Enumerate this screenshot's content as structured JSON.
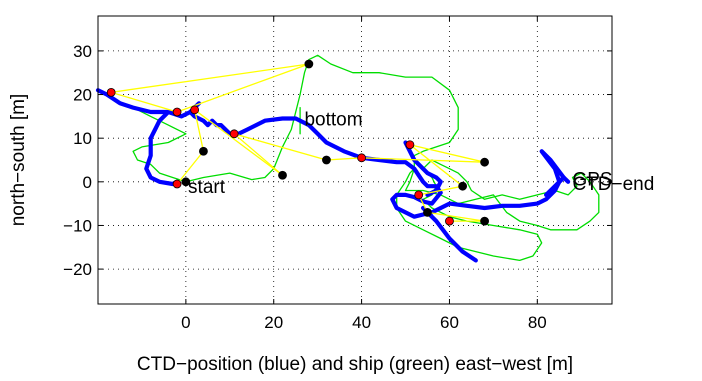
{
  "chart_data": {
    "type": "line",
    "xlabel": "CTD−position (blue) and ship (green) east−west [m]",
    "ylabel": "north−south [m]",
    "xlim": [
      -20,
      97
    ],
    "ylim": [
      -28,
      38
    ],
    "xticks": [
      0,
      20,
      40,
      60,
      80
    ],
    "yticks": [
      -20,
      -10,
      0,
      10,
      20,
      30
    ],
    "xtick_labels": [
      "0",
      "20",
      "40",
      "60",
      "80"
    ],
    "ytick_labels": [
      "−20",
      "−10",
      "0",
      "10",
      "20",
      "30"
    ],
    "grid": true,
    "colors": {
      "ctd": "#0000ff",
      "ship": "#00dd00",
      "link": "#ffff00",
      "red_marker": "#ff0000",
      "black_marker": "#000000"
    },
    "series": [
      {
        "key": "ctd",
        "points": [
          [
            -20,
            21
          ],
          [
            -18,
            20
          ],
          [
            -15,
            18
          ],
          [
            -12,
            17
          ],
          [
            -8,
            16
          ],
          [
            -4,
            16
          ],
          [
            -1,
            15
          ],
          [
            1,
            16
          ],
          [
            2,
            15
          ],
          [
            4,
            14
          ],
          [
            5,
            13
          ],
          [
            6,
            14
          ],
          [
            7,
            13
          ],
          [
            8,
            13
          ],
          [
            10,
            11
          ],
          [
            12,
            11
          ],
          [
            14,
            12
          ],
          [
            18,
            14
          ],
          [
            22,
            14.5
          ],
          [
            25,
            14.5
          ],
          [
            28,
            13
          ],
          [
            30,
            11
          ],
          [
            32,
            9
          ],
          [
            34,
            8
          ],
          [
            36,
            7
          ],
          [
            40,
            5.5
          ],
          [
            44,
            5
          ],
          [
            48,
            4.5
          ],
          [
            50,
            4.5
          ],
          [
            52,
            3
          ],
          [
            53,
            1.5
          ],
          [
            54,
            0
          ],
          [
            55,
            -1
          ],
          [
            57,
            -1
          ],
          [
            58,
            -2.5
          ],
          [
            56,
            -5
          ],
          [
            54,
            -4.5
          ],
          [
            52,
            -3.5
          ],
          [
            50,
            -3
          ],
          [
            48,
            -3
          ],
          [
            47,
            -4
          ],
          [
            48,
            -6
          ],
          [
            50,
            -7
          ],
          [
            52,
            -8
          ],
          [
            54,
            -7.5
          ],
          [
            56,
            -7
          ],
          [
            58,
            -6
          ],
          [
            60,
            -5
          ],
          [
            64,
            -5.5
          ],
          [
            68,
            -6
          ],
          [
            72,
            -5.5
          ],
          [
            76,
            -5.5
          ],
          [
            80,
            -5
          ],
          [
            82,
            -4
          ],
          [
            84,
            -2
          ],
          [
            85,
            0
          ],
          [
            86,
            1
          ],
          [
            87,
            0
          ]
        ]
      },
      {
        "key": "ctd",
        "points": [
          [
            -4,
            16
          ],
          [
            -6,
            14
          ],
          [
            -7,
            12
          ],
          [
            -8,
            10
          ],
          [
            -8,
            6
          ],
          [
            -9,
            3
          ],
          [
            -8,
            1
          ],
          [
            -6,
            0
          ],
          [
            -3,
            -0.5
          ],
          [
            -2,
            0
          ]
        ]
      },
      {
        "key": "ctd",
        "points": [
          [
            1,
            16
          ],
          [
            2,
            17
          ],
          [
            3,
            18
          ]
        ]
      },
      {
        "key": "ctd",
        "points": [
          [
            50,
            9
          ],
          [
            51,
            7
          ],
          [
            52,
            5
          ],
          [
            53,
            4
          ],
          [
            55,
            2
          ],
          [
            57,
            1
          ],
          [
            58,
            0
          ],
          [
            57,
            -2
          ],
          [
            55,
            -3
          ]
        ]
      },
      {
        "key": "ctd",
        "points": [
          [
            54,
            -6
          ],
          [
            57,
            -9
          ],
          [
            60,
            -13
          ],
          [
            63,
            -16
          ],
          [
            66,
            -18
          ]
        ]
      },
      {
        "key": "ctd",
        "points": [
          [
            85,
            0
          ],
          [
            84,
            3
          ],
          [
            81,
            7
          ],
          [
            83,
            5
          ],
          [
            86,
            1
          ],
          [
            84,
            -1
          ],
          [
            82,
            -3
          ]
        ]
      },
      {
        "key": "ship",
        "points": [
          [
            -12,
            17
          ],
          [
            -8,
            15
          ],
          [
            -4,
            13
          ],
          [
            0,
            11
          ],
          [
            -4,
            9
          ],
          [
            -10,
            8
          ],
          [
            -12,
            7
          ],
          [
            -11,
            5
          ],
          [
            -8,
            4
          ],
          [
            -6,
            2
          ],
          [
            -3,
            1
          ],
          [
            0,
            0
          ],
          [
            4,
            1
          ],
          [
            10,
            2
          ],
          [
            15,
            0.5
          ],
          [
            18,
            1
          ],
          [
            20,
            3
          ],
          [
            22,
            8
          ],
          [
            24,
            12
          ],
          [
            25,
            16
          ],
          [
            26,
            20
          ],
          [
            27,
            25
          ],
          [
            28,
            28
          ],
          [
            30,
            29
          ],
          [
            33,
            27
          ],
          [
            38,
            25
          ],
          [
            44,
            25
          ],
          [
            50,
            24
          ],
          [
            56,
            24
          ],
          [
            60,
            21
          ],
          [
            62,
            17
          ],
          [
            62,
            12
          ],
          [
            60,
            9
          ],
          [
            57,
            8
          ],
          [
            54,
            7
          ],
          [
            52,
            6
          ],
          [
            52,
            3
          ],
          [
            51,
            0
          ],
          [
            50,
            -2
          ],
          [
            54,
            -2
          ],
          [
            58,
            -3
          ],
          [
            62,
            -5
          ],
          [
            66,
            -4
          ],
          [
            70,
            -3
          ],
          [
            73,
            -7
          ],
          [
            76,
            -9
          ],
          [
            80,
            -10
          ],
          [
            83,
            -11
          ],
          [
            86,
            -11
          ],
          [
            89,
            -11
          ],
          [
            92,
            -9
          ],
          [
            94,
            -7
          ],
          [
            94,
            -3
          ],
          [
            92,
            0
          ],
          [
            90,
            2
          ],
          [
            88,
            1
          ],
          [
            89,
            -1
          ],
          [
            87,
            -3
          ],
          [
            84,
            -2
          ],
          [
            80,
            -3
          ],
          [
            76,
            -4
          ],
          [
            72,
            -3
          ],
          [
            68,
            -4
          ],
          [
            65,
            -2
          ],
          [
            64,
            0
          ],
          [
            62,
            2
          ],
          [
            60,
            3
          ],
          [
            58,
            4
          ],
          [
            56,
            5
          ],
          [
            54,
            3
          ],
          [
            56,
            1
          ],
          [
            57,
            -1
          ],
          [
            56,
            -3
          ],
          [
            54,
            -4
          ],
          [
            56,
            -6
          ],
          [
            60,
            -8
          ],
          [
            64,
            -9
          ],
          [
            70,
            -10
          ],
          [
            76,
            -11
          ],
          [
            80,
            -12
          ],
          [
            81,
            -14
          ],
          [
            79,
            -17
          ],
          [
            76,
            -18
          ],
          [
            70,
            -17
          ],
          [
            66,
            -16
          ],
          [
            62,
            -15
          ],
          [
            58,
            -13
          ],
          [
            54,
            -11
          ],
          [
            50,
            -9
          ],
          [
            48,
            -6
          ],
          [
            48,
            -3
          ],
          [
            50,
            0
          ],
          [
            51,
            2
          ],
          [
            52,
            3
          ]
        ]
      },
      {
        "key": "ship",
        "points": [
          [
            26,
            14
          ],
          [
            26,
            17
          ],
          [
            26,
            11
          ]
        ]
      }
    ],
    "links": [
      [
        [
          -17,
          20.5
        ],
        [
          28,
          27
        ]
      ],
      [
        [
          -17,
          20.5
        ],
        [
          -2,
          16
        ]
      ],
      [
        [
          -2,
          16
        ],
        [
          28,
          27
        ]
      ],
      [
        [
          2,
          16.5
        ],
        [
          22,
          1.5
        ]
      ],
      [
        [
          2,
          16.5
        ],
        [
          4,
          7
        ]
      ],
      [
        [
          11,
          11
        ],
        [
          22,
          1.5
        ]
      ],
      [
        [
          11,
          11
        ],
        [
          32,
          5
        ]
      ],
      [
        [
          40,
          5.5
        ],
        [
          32,
          5
        ]
      ],
      [
        [
          40,
          5.5
        ],
        [
          68,
          4.5
        ]
      ],
      [
        [
          51,
          8.5
        ],
        [
          68,
          4.5
        ]
      ],
      [
        [
          51,
          8.5
        ],
        [
          63,
          -1
        ]
      ],
      [
        [
          53,
          -3
        ],
        [
          63,
          -1
        ]
      ],
      [
        [
          53,
          -3
        ],
        [
          55,
          -7
        ]
      ],
      [
        [
          55,
          -7
        ],
        [
          68,
          -9
        ]
      ],
      [
        [
          60,
          -9
        ],
        [
          68,
          -9
        ]
      ],
      [
        [
          -2,
          -0.5
        ],
        [
          4,
          7
        ]
      ]
    ],
    "red_markers": [
      [
        -17,
        20.5
      ],
      [
        -2,
        16
      ],
      [
        2,
        16.5
      ],
      [
        11,
        11
      ],
      [
        40,
        5.5
      ],
      [
        51,
        8.5
      ],
      [
        53,
        -3
      ],
      [
        60,
        -9
      ],
      [
        -2,
        -0.5
      ]
    ],
    "black_markers": [
      [
        28,
        27
      ],
      [
        4,
        7
      ],
      [
        22,
        1.5
      ],
      [
        32,
        5
      ],
      [
        68,
        4.5
      ],
      [
        63,
        -1
      ],
      [
        55,
        -7
      ],
      [
        68,
        -9
      ],
      [
        0,
        0
      ]
    ],
    "annotations": [
      {
        "text": "start",
        "x": 0.5,
        "y": -1
      },
      {
        "text": "bottom",
        "x": 27,
        "y": 14.5
      },
      {
        "text": "GPS",
        "x": 88,
        "y": 0.8
      },
      {
        "text": "CTD−end",
        "x": 88,
        "y": -0.3
      }
    ]
  }
}
